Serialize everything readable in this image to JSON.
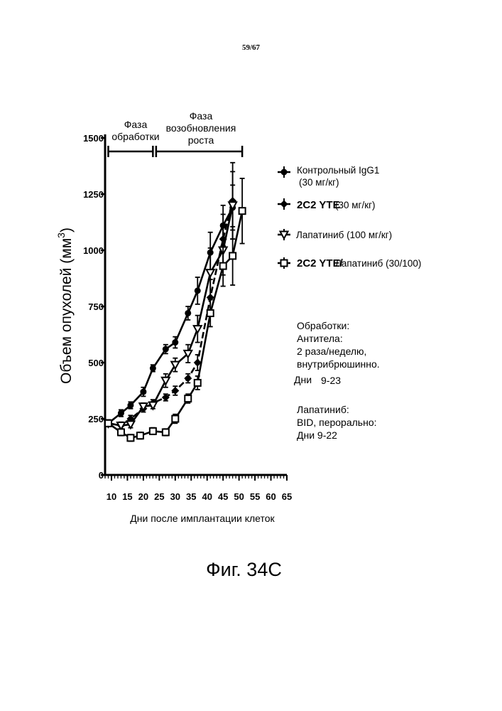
{
  "page_number": "59/67",
  "figure_caption": "Фиг. 34C",
  "phases": {
    "treatment_line1": "Фаза",
    "treatment_line2": "обработки",
    "regrowth_line1": "Фаза",
    "regrowth_line2": "возобновления",
    "regrowth_line3": "роста"
  },
  "legend": {
    "control_name": "Контрольный IgG1",
    "control_dose": "(30 мг/кг)",
    "yte_name": "2C2 YTE",
    "yte_dose": "(30 мг/кг)",
    "lap_name": "Лапатиниб (100 мг/кг)",
    "combo_name": "2C2 YTE/",
    "combo_rest": "Лапатиниб (30/100)"
  },
  "notes": {
    "title": "Обработки:",
    "ab1": "Антитела:",
    "ab2": "2 раза/неделю,",
    "ab3": "внутрибрюшинно.",
    "ab4": "Дни",
    "ab4_range": "9-23",
    "lap1": "Лапатиниб:",
    "lap2": "BID, перорально:",
    "lap3": "Дни 9-22"
  },
  "colors": {
    "ink": "#000000",
    "paper": "#ffffff"
  },
  "chart_data": {
    "type": "line",
    "xlabel": "Дни после имплантации клеток",
    "ylabel": "Объем опухолей (мм",
    "ylabel_sup": "3",
    "ylabel_close": ")",
    "xlim": [
      8,
      65
    ],
    "ylim": [
      0,
      1500
    ],
    "x_ticks": [
      10,
      15,
      20,
      25,
      30,
      35,
      40,
      45,
      50,
      55,
      60,
      65
    ],
    "y_ticks": [
      0,
      250,
      500,
      750,
      1000,
      1250,
      1500
    ],
    "phases_days": {
      "treatment": [
        9,
        23
      ],
      "regrowth": [
        24,
        51
      ]
    },
    "series": [
      {
        "name": "Контрольный IgG1 (30 мг/кг)",
        "marker": "circle",
        "dashed": false,
        "x": [
          9,
          13,
          16,
          20,
          23,
          27,
          30,
          34,
          37,
          41,
          45,
          48
        ],
        "y": [
          230,
          275,
          310,
          370,
          475,
          560,
          590,
          720,
          820,
          990,
          1110,
          1190
        ],
        "err": [
          15,
          15,
          15,
          20,
          15,
          20,
          25,
          30,
          60,
          90,
          90,
          100
        ]
      },
      {
        "name": "2C2 YTE (30 мг/кг)",
        "marker": "diamond",
        "dashed": true,
        "x": [
          9,
          13,
          16,
          20,
          23,
          27,
          30,
          34,
          37,
          41,
          45,
          48
        ],
        "y": [
          230,
          220,
          250,
          295,
          320,
          345,
          375,
          430,
          500,
          790,
          1050,
          1220
        ],
        "err": [
          15,
          15,
          15,
          15,
          15,
          15,
          20,
          20,
          35,
          80,
          110,
          170
        ]
      },
      {
        "name": "Лапатиниб (100 мг/кг)",
        "marker": "triangle-down",
        "dashed": false,
        "x": [
          9,
          13,
          16,
          20,
          23,
          27,
          30,
          34,
          37,
          41,
          45,
          48
        ],
        "y": [
          230,
          220,
          225,
          305,
          310,
          420,
          490,
          540,
          650,
          900,
          1000,
          1200
        ],
        "err": [
          15,
          15,
          15,
          15,
          15,
          30,
          30,
          40,
          60,
          110,
          110,
          150
        ]
      },
      {
        "name": "2C2 YTE/Лапатиниб (30/100)",
        "marker": "square",
        "dashed": false,
        "x": [
          9,
          13,
          16,
          19,
          23,
          27,
          30,
          34,
          37,
          41,
          45,
          48,
          51
        ],
        "y": [
          230,
          190,
          165,
          175,
          195,
          190,
          250,
          340,
          410,
          720,
          930,
          975,
          1175
        ],
        "err": [
          15,
          15,
          15,
          15,
          15,
          15,
          20,
          20,
          30,
          60,
          90,
          130,
          145
        ]
      }
    ]
  }
}
